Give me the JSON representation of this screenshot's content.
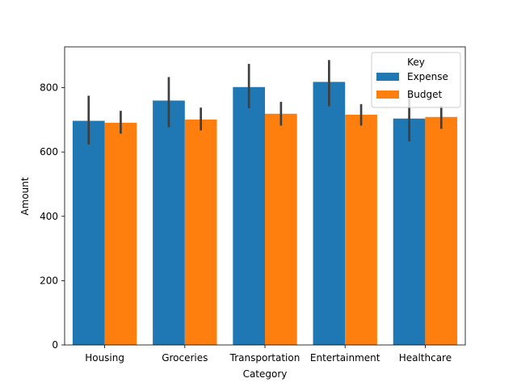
{
  "chart_data": {
    "type": "bar",
    "title": "",
    "xlabel": "Category",
    "ylabel": "Amount",
    "categories": [
      "Housing",
      "Groceries",
      "Transportation",
      "Entertainment",
      "Healthcare"
    ],
    "series": [
      {
        "name": "Expense",
        "color": "#1f77b4",
        "values": [
          697,
          760,
          802,
          818,
          704
        ],
        "error_low": [
          623,
          677,
          736,
          742,
          633
        ],
        "error_high": [
          775,
          833,
          874,
          886,
          778
        ]
      },
      {
        "name": "Budget",
        "color": "#ff7f0e",
        "values": [
          691,
          701,
          719,
          716,
          709
        ],
        "error_low": [
          657,
          667,
          682,
          682,
          672
        ],
        "error_high": [
          728,
          738,
          756,
          749,
          743
        ]
      }
    ],
    "ylim": [
      0,
      927
    ],
    "yticks": [
      0,
      200,
      400,
      600,
      800
    ],
    "grid": false,
    "legend": {
      "title": "Key",
      "placement": "top-right"
    },
    "errorbar_color": "#3f3f3f"
  }
}
